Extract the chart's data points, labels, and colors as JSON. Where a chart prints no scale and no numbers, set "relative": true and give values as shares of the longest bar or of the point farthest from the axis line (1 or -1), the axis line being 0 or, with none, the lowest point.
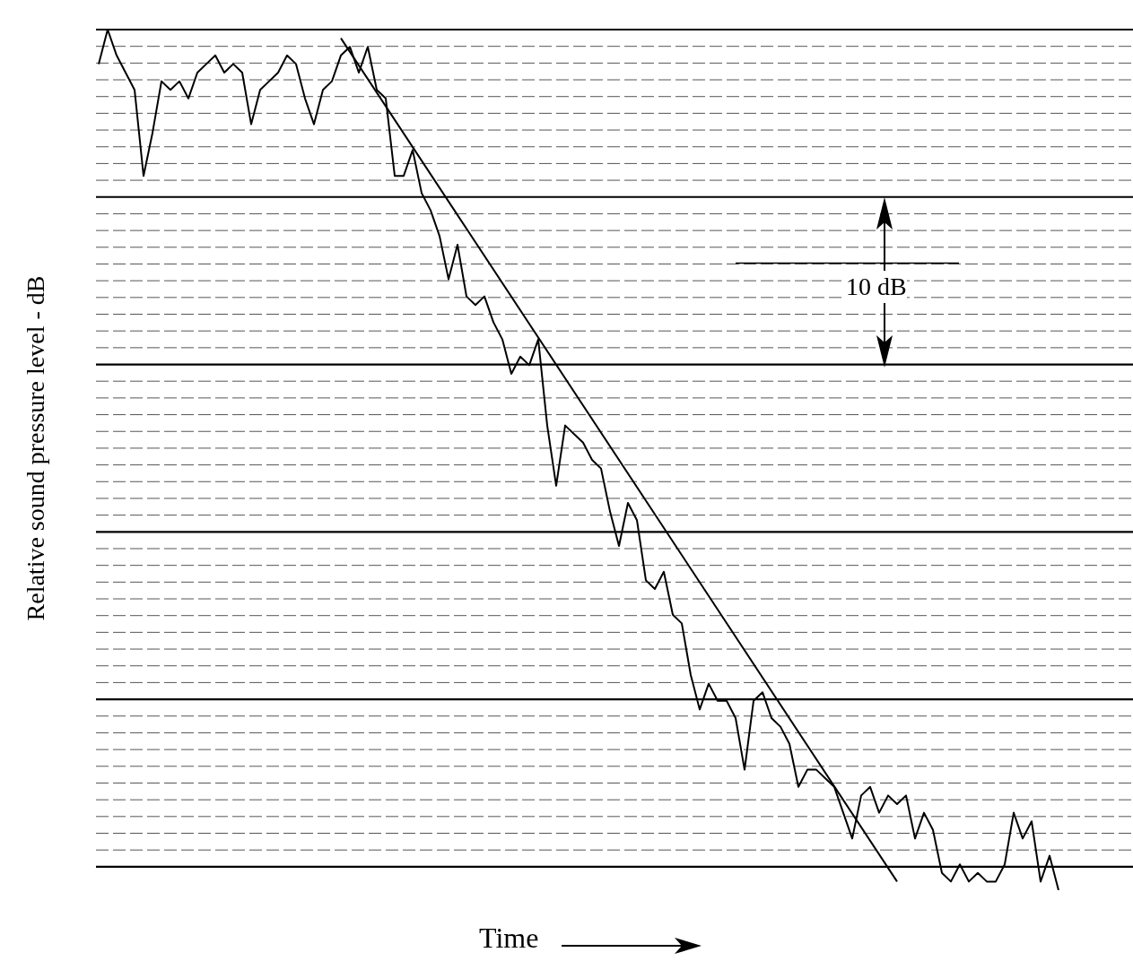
{
  "chart_data": {
    "type": "line",
    "relative": true,
    "ylabel": "Relative sound pressure level - dB",
    "xlabel": "Time",
    "annotations": [
      "10 dB"
    ],
    "grid": true,
    "marker": "none",
    "line_style": "solid",
    "categories": [
      null,
      null,
      null,
      null,
      null,
      null,
      null,
      null,
      null,
      null,
      null,
      null,
      null,
      null,
      null,
      null,
      null,
      null,
      null,
      null,
      null,
      null,
      null,
      null,
      null,
      null,
      null,
      null,
      null,
      null,
      null,
      null,
      null,
      null,
      null,
      null,
      null,
      null,
      null,
      null,
      null,
      null,
      null,
      null,
      null,
      null,
      null,
      null,
      null,
      null,
      null,
      null,
      null,
      null,
      null,
      null,
      null,
      null,
      null,
      null,
      null,
      null,
      null,
      null,
      null,
      null,
      null,
      null,
      null,
      null,
      null,
      null,
      null,
      null,
      null,
      null,
      null,
      null,
      null,
      null,
      null,
      null,
      null,
      null,
      null,
      null,
      null,
      null,
      null,
      null,
      null,
      null,
      null,
      null,
      null,
      null,
      null,
      null,
      null,
      null,
      null,
      null,
      null,
      null,
      null,
      null,
      null,
      null
    ],
    "series": [
      {
        "color": "#000000",
        "values": [
          0.96,
          1.0,
          0.97,
          0.95,
          0.93,
          0.83,
          0.88,
          0.94,
          0.93,
          0.94,
          0.92,
          0.95,
          0.96,
          0.97,
          0.95,
          0.96,
          0.95,
          0.89,
          0.93,
          0.94,
          0.95,
          0.97,
          0.96,
          0.92,
          0.89,
          0.93,
          0.94,
          0.97,
          0.98,
          0.95,
          0.98,
          0.93,
          0.92,
          0.83,
          0.83,
          0.86,
          0.81,
          0.79,
          0.76,
          0.71,
          0.75,
          0.69,
          0.68,
          0.69,
          0.66,
          0.64,
          0.6,
          0.62,
          0.61,
          0.64,
          0.54,
          0.47,
          0.54,
          0.53,
          0.52,
          0.5,
          0.49,
          0.44,
          0.4,
          0.45,
          0.43,
          0.36,
          0.35,
          0.37,
          0.32,
          0.31,
          0.25,
          0.21,
          0.24,
          0.22,
          0.22,
          0.2,
          0.14,
          0.22,
          0.23,
          0.2,
          0.19,
          0.17,
          0.12,
          0.14,
          0.14,
          0.13,
          0.12,
          0.09,
          0.06,
          0.11,
          0.12,
          0.09,
          0.11,
          0.1,
          0.11,
          0.06,
          0.09,
          0.07,
          0.02,
          0.01,
          0.03,
          0.01,
          0.02,
          0.01,
          0.01,
          0.03,
          0.09,
          0.06,
          0.08,
          0.01,
          0.04,
          0.0
        ]
      },
      {
        "type": "line",
        "color": "#000000",
        "values": [
          null,
          null,
          null,
          null,
          null,
          null,
          null,
          null,
          null,
          null,
          null,
          null,
          null,
          null,
          null,
          null,
          null,
          null,
          null,
          null,
          null,
          null,
          null,
          null,
          null,
          null,
          null,
          0.99,
          null,
          null,
          null,
          null,
          null,
          null,
          null,
          null,
          null,
          null,
          null,
          null,
          null,
          null,
          null,
          null,
          null,
          null,
          null,
          null,
          null,
          null,
          null,
          null,
          null,
          null,
          null,
          null,
          null,
          null,
          null,
          null,
          null,
          null,
          null,
          null,
          null,
          null,
          null,
          null,
          null,
          null,
          null,
          null,
          null,
          null,
          null,
          null,
          null,
          null,
          null,
          null,
          null,
          null,
          null,
          null,
          null,
          null,
          null,
          null,
          null,
          0.01,
          null,
          null,
          null,
          null,
          null,
          null,
          null,
          null,
          null,
          null,
          null,
          null,
          null,
          null,
          null,
          null,
          null,
          null
        ]
      }
    ]
  }
}
